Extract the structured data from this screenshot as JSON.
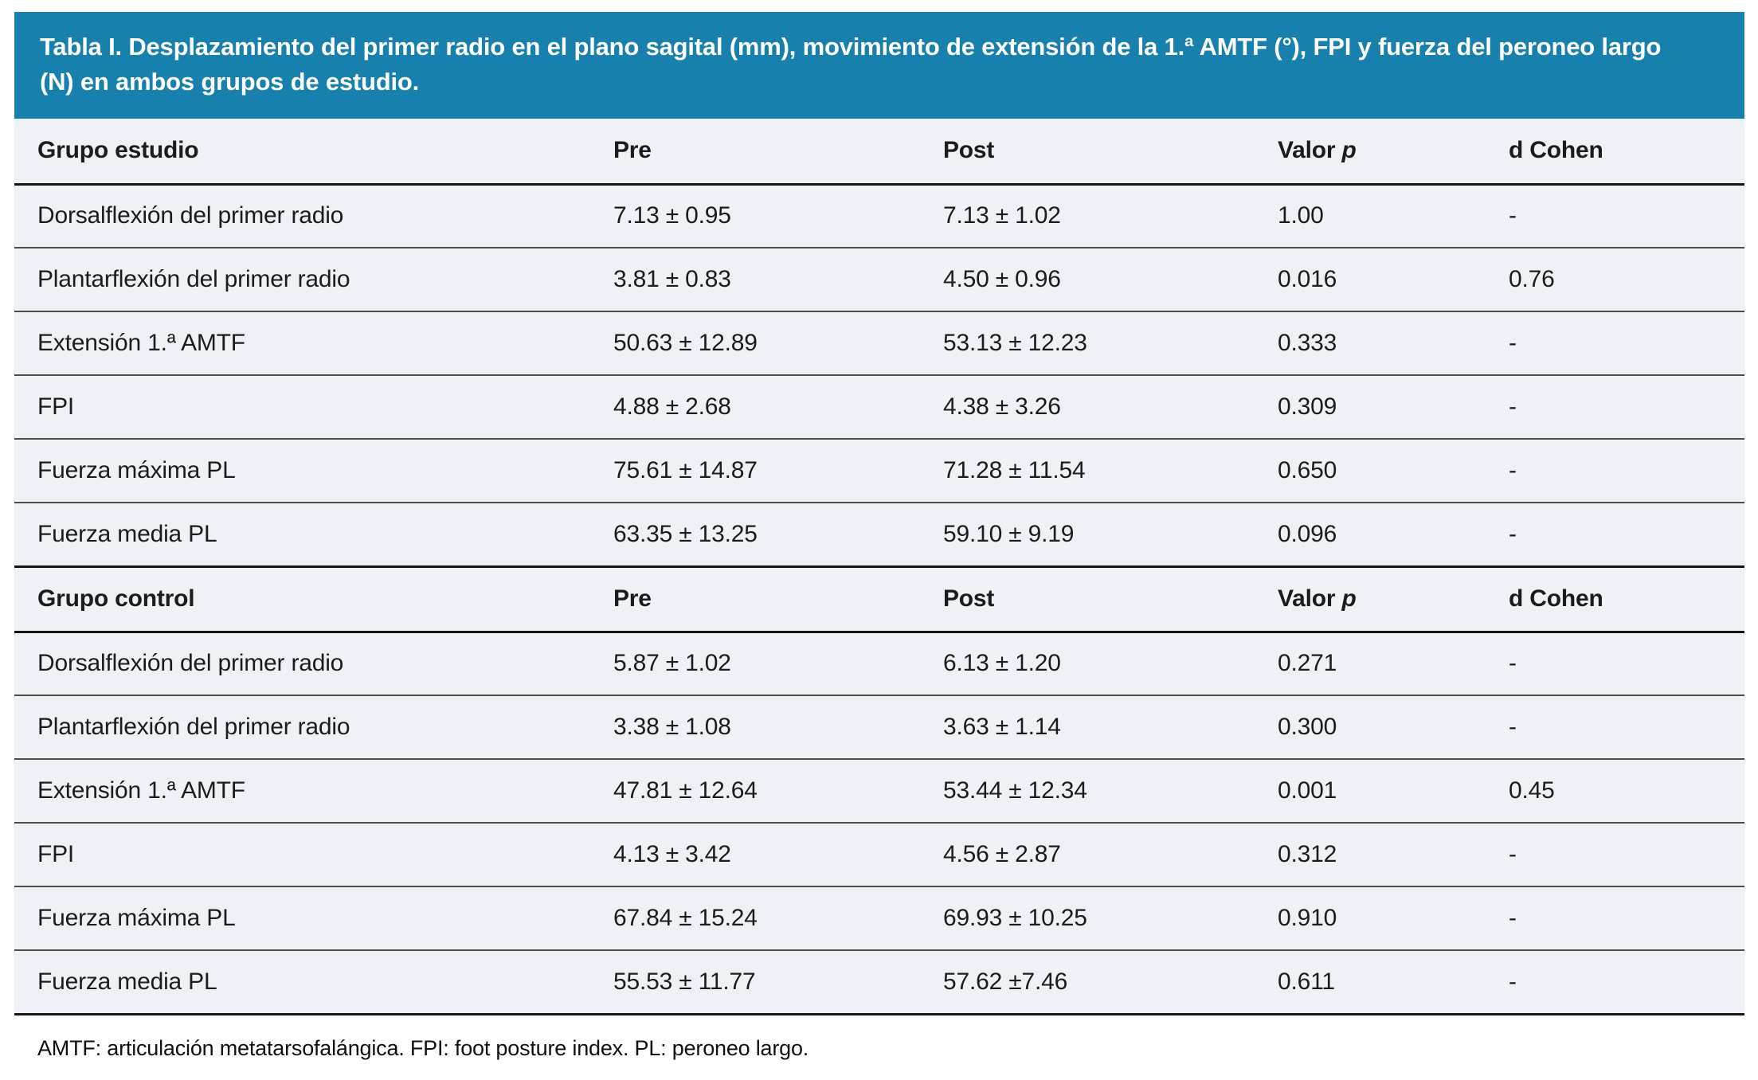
{
  "title": "Tabla I. Desplazamiento del primer radio en el plano sagital (mm), movimiento de extensión de la 1.ª AMTF (°), FPI y fuerza del peroneo largo (N) en ambos grupos de estudio.",
  "colors": {
    "title_bar_bg": "#1780ad",
    "row_bg": "#eef1f6",
    "title_text": "#ffffff"
  },
  "table": {
    "sections": [
      {
        "group_label": "Grupo estudio",
        "headers": [
          {
            "text": "Pre"
          },
          {
            "text": "Post"
          },
          {
            "text": "Valor ",
            "italic": "p"
          },
          {
            "text": "d Cohen"
          }
        ],
        "rows": [
          {
            "label": "Dorsalflexión del primer radio",
            "pre": "7.13 ± 0.95",
            "post": "7.13 ± 1.02",
            "p": "1.00",
            "p_bold": false,
            "d": "-"
          },
          {
            "label": "Plantarflexión del primer radio",
            "pre": "3.81 ± 0.83",
            "post": "4.50 ± 0.96",
            "p": "0.016",
            "p_bold": true,
            "d": "0.76"
          },
          {
            "label": "Extensión 1.ª AMTF",
            "pre": "50.63 ± 12.89",
            "post": "53.13 ± 12.23",
            "p": "0.333",
            "p_bold": false,
            "d": "-"
          },
          {
            "label": "FPI",
            "pre": "4.88 ± 2.68",
            "post": "4.38 ± 3.26",
            "p": "0.309",
            "p_bold": false,
            "d": "-"
          },
          {
            "label": "Fuerza máxima PL",
            "pre": "75.61 ± 14.87",
            "post": "71.28 ± 11.54",
            "p": "0.650",
            "p_bold": false,
            "d": "-"
          },
          {
            "label": "Fuerza media PL",
            "pre": "63.35 ± 13.25",
            "post": "59.10 ± 9.19",
            "p": "0.096",
            "p_bold": false,
            "d": "-"
          }
        ]
      },
      {
        "group_label": "Grupo control",
        "headers": [
          {
            "text": "Pre"
          },
          {
            "text": "Post"
          },
          {
            "text": "Valor ",
            "italic": "p"
          },
          {
            "text": "d Cohen"
          }
        ],
        "rows": [
          {
            "label": "Dorsalflexión del primer radio",
            "pre": "5.87 ± 1.02",
            "post": "6.13 ± 1.20",
            "p": "0.271",
            "p_bold": false,
            "d": "-"
          },
          {
            "label": "Plantarflexión del primer radio",
            "pre": "3.38 ± 1.08",
            "post": "3.63 ± 1.14",
            "p": "0.300",
            "p_bold": false,
            "d": "-"
          },
          {
            "label": "Extensión 1.ª AMTF",
            "pre": "47.81 ± 12.64",
            "post": "53.44 ± 12.34",
            "p": "0.001",
            "p_bold": true,
            "d": "0.45"
          },
          {
            "label": "FPI",
            "pre": "4.13 ± 3.42",
            "post": "4.56 ± 2.87",
            "p": "0.312",
            "p_bold": false,
            "d": "-"
          },
          {
            "label": "Fuerza máxima PL",
            "pre": "67.84 ± 15.24",
            "post": "69.93 ± 10.25",
            "p": "0.910",
            "p_bold": false,
            "d": "-"
          },
          {
            "label": "Fuerza media PL",
            "pre": "55.53 ± 11.77",
            "post": "57.62 ±7.46",
            "p": "0.611",
            "p_bold": false,
            "d": "-"
          }
        ]
      }
    ]
  },
  "footnote": "AMTF: articulación metatarsofalángica. FPI: foot posture index. PL: peroneo largo."
}
